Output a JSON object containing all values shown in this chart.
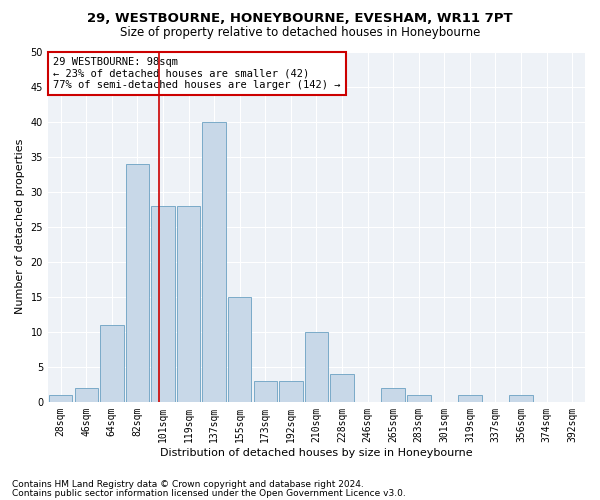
{
  "title": "29, WESTBOURNE, HONEYBOURNE, EVESHAM, WR11 7PT",
  "subtitle": "Size of property relative to detached houses in Honeybourne",
  "xlabel": "Distribution of detached houses by size in Honeybourne",
  "ylabel": "Number of detached properties",
  "bin_labels": [
    "28sqm",
    "46sqm",
    "64sqm",
    "82sqm",
    "101sqm",
    "119sqm",
    "137sqm",
    "155sqm",
    "173sqm",
    "192sqm",
    "210sqm",
    "228sqm",
    "246sqm",
    "265sqm",
    "283sqm",
    "301sqm",
    "319sqm",
    "337sqm",
    "356sqm",
    "374sqm",
    "392sqm"
  ],
  "bar_heights": [
    1,
    2,
    11,
    34,
    28,
    28,
    40,
    15,
    3,
    3,
    10,
    4,
    0,
    2,
    1,
    0,
    1,
    0,
    1,
    0,
    0
  ],
  "bar_color": "#c8d8e8",
  "bar_edge_color": "#7aaac8",
  "vline_x": 3.85,
  "vline_color": "#cc0000",
  "ylim": [
    0,
    50
  ],
  "yticks": [
    0,
    5,
    10,
    15,
    20,
    25,
    30,
    35,
    40,
    45,
    50
  ],
  "annotation_text": "29 WESTBOURNE: 98sqm\n← 23% of detached houses are smaller (42)\n77% of semi-detached houses are larger (142) →",
  "annotation_box_color": "#cc0000",
  "footnote1": "Contains HM Land Registry data © Crown copyright and database right 2024.",
  "footnote2": "Contains public sector information licensed under the Open Government Licence v3.0.",
  "plot_bg_color": "#eef2f7",
  "title_fontsize": 9.5,
  "subtitle_fontsize": 8.5,
  "axis_label_fontsize": 8,
  "tick_fontsize": 7,
  "annotation_fontsize": 7.5,
  "footnote_fontsize": 6.5
}
